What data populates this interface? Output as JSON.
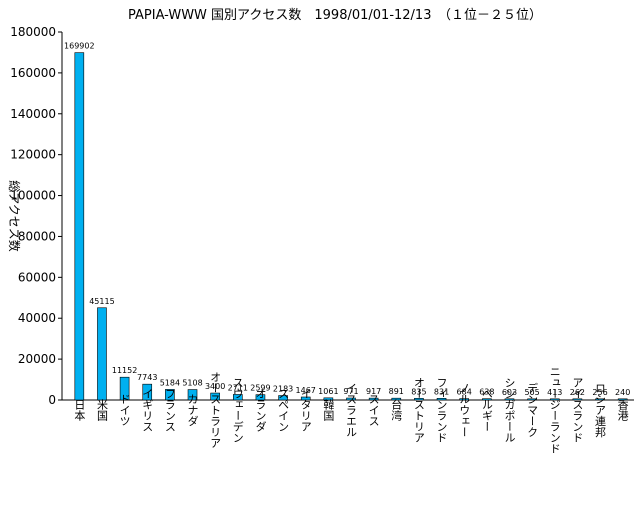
{
  "chart_data": {
    "type": "bar",
    "title": "PAPIA-WWW 国別アクセス数　1998/01/01-12/13　（１位－２５位）",
    "xlabel": "",
    "ylabel": "総アクセス数",
    "ylim": [
      0,
      180000
    ],
    "yticks": [
      0,
      20000,
      40000,
      60000,
      80000,
      100000,
      120000,
      140000,
      160000,
      180000
    ],
    "grid": false,
    "legend": "none",
    "bar_color": "#00b0f0",
    "categories": [
      "日本",
      "米国",
      "ドイツ",
      "イギリス",
      "フランス",
      "カナダ",
      "オーストラリア",
      "スウェーデン",
      "オランダ",
      "スペイン",
      "イタリア",
      "韓国",
      "イスラエル",
      "スイス",
      "台湾",
      "オーストリア",
      "フィンランド",
      "ノルウェー",
      "ベルギー",
      "シンガポール",
      "デンマーク",
      "ニュージーランド",
      "アイスランド",
      "ロシア連邦",
      "香港"
    ],
    "values": [
      169902,
      45115,
      11152,
      7743,
      5184,
      5108,
      3400,
      2711,
      2599,
      2183,
      1467,
      1061,
      971,
      917,
      891,
      835,
      831,
      684,
      638,
      603,
      505,
      413,
      262,
      256,
      240
    ]
  }
}
